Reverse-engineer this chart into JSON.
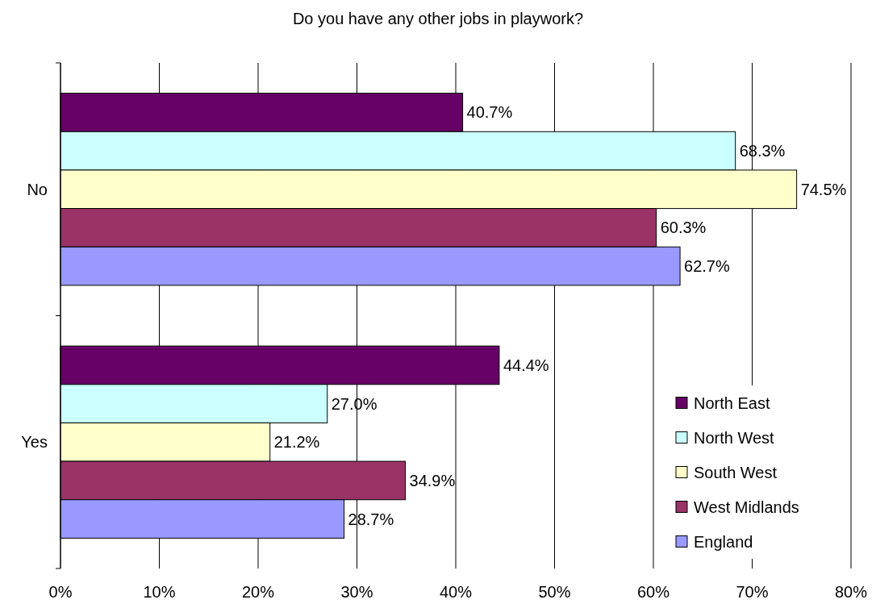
{
  "chart_data": {
    "type": "bar",
    "orientation": "horizontal",
    "title": "Do you have any other jobs in playwork?",
    "categories": [
      "No",
      "Yes"
    ],
    "series": [
      {
        "name": "North East",
        "color": "#660066",
        "values": [
          40.7,
          44.4
        ],
        "value_labels": [
          "40.7%",
          "44.4%"
        ]
      },
      {
        "name": "North West",
        "color": "#ccffff",
        "values": [
          68.3,
          27.0
        ],
        "value_labels": [
          "68.3%",
          "27.0%"
        ]
      },
      {
        "name": "South West",
        "color": "#ffffcc",
        "values": [
          74.5,
          21.2
        ],
        "value_labels": [
          "74.5%",
          "21.2%"
        ]
      },
      {
        "name": "West Midlands",
        "color": "#993366",
        "values": [
          60.3,
          34.9
        ],
        "value_labels": [
          "60.3%",
          "34.9%"
        ]
      },
      {
        "name": "England",
        "color": "#9999ff",
        "values": [
          62.7,
          28.7
        ],
        "value_labels": [
          "62.7%",
          "28.7%"
        ]
      }
    ],
    "xlim": [
      0,
      80
    ],
    "xticks": [
      {
        "value": 0,
        "label": "0%"
      },
      {
        "value": 10,
        "label": "10%"
      },
      {
        "value": 20,
        "label": "20%"
      },
      {
        "value": 30,
        "label": "30%"
      },
      {
        "value": 40,
        "label": "40%"
      },
      {
        "value": 50,
        "label": "50%"
      },
      {
        "value": 60,
        "label": "60%"
      },
      {
        "value": 70,
        "label": "70%"
      },
      {
        "value": 80,
        "label": "80%"
      }
    ],
    "grid": "x",
    "legend": "bottom right"
  }
}
